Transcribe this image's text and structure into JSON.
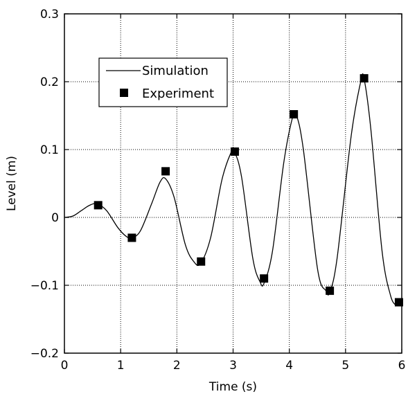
{
  "chart_data": {
    "type": "line",
    "title": "",
    "xlabel": "Time (s)",
    "ylabel": "Level (m)",
    "xlim": [
      0,
      6
    ],
    "ylim": [
      -0.2,
      0.3
    ],
    "x_ticks": [
      0,
      1,
      2,
      3,
      4,
      5,
      6
    ],
    "x_tick_labels": [
      "0",
      "1",
      "2",
      "3",
      "4",
      "5",
      "6"
    ],
    "y_ticks": [
      -0.2,
      -0.1,
      0,
      0.1,
      0.2,
      0.3
    ],
    "y_tick_labels": [
      "−0.2",
      "−0.1",
      "0",
      "0.1",
      "0.2",
      "0.3"
    ],
    "grid": true,
    "legend": "top-left",
    "series": [
      {
        "name": "Simulation",
        "kind": "line",
        "color": "#000000",
        "x": [
          0,
          0.15,
          0.3,
          0.45,
          0.58,
          0.75,
          0.95,
          1.1,
          1.2,
          1.35,
          1.55,
          1.7,
          1.8,
          1.95,
          2.15,
          2.3,
          2.42,
          2.6,
          2.8,
          2.95,
          3.02,
          3.15,
          3.35,
          3.48,
          3.55,
          3.7,
          3.9,
          4.05,
          4.12,
          4.25,
          4.5,
          4.65,
          4.72,
          4.85,
          5.1,
          5.27,
          5.33,
          5.45,
          5.65,
          5.8,
          5.9
        ],
        "y": [
          0,
          0.002,
          0.01,
          0.018,
          0.02,
          0.01,
          -0.015,
          -0.028,
          -0.03,
          -0.02,
          0.02,
          0.052,
          0.057,
          0.03,
          -0.04,
          -0.065,
          -0.068,
          -0.03,
          0.055,
          0.093,
          0.097,
          0.06,
          -0.06,
          -0.095,
          -0.097,
          -0.05,
          0.08,
          0.145,
          0.152,
          0.1,
          -0.075,
          -0.108,
          -0.11,
          -0.06,
          0.12,
          0.2,
          0.204,
          0.13,
          -0.05,
          -0.115,
          -0.13
        ]
      },
      {
        "name": "Experiment",
        "kind": "marker",
        "color": "#000000",
        "x": [
          0.6,
          1.2,
          1.8,
          2.43,
          3.03,
          3.55,
          4.08,
          4.72,
          5.33,
          5.95
        ],
        "y": [
          0.018,
          -0.03,
          0.068,
          -0.065,
          0.097,
          -0.09,
          0.152,
          -0.108,
          0.205,
          -0.125
        ]
      }
    ]
  }
}
